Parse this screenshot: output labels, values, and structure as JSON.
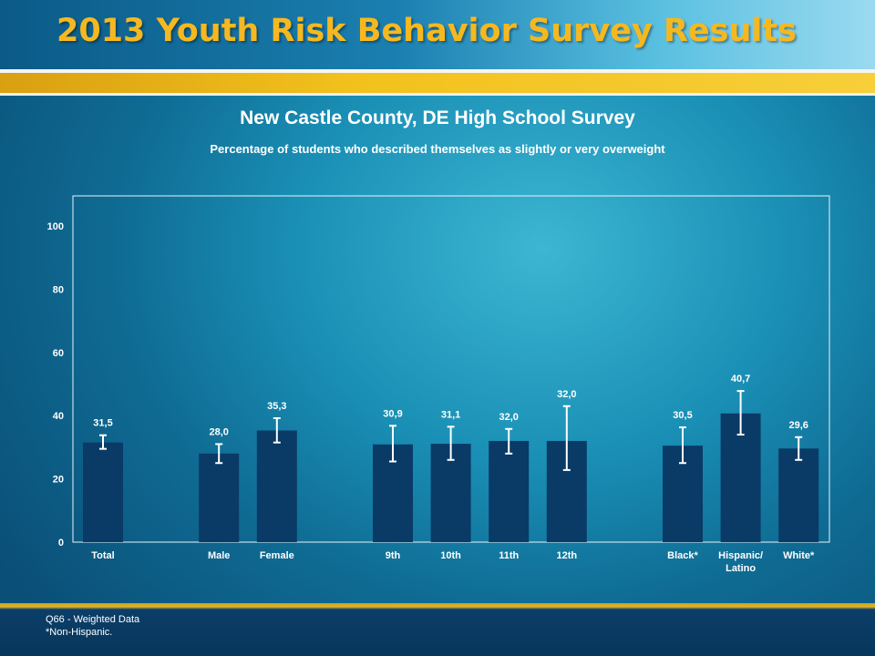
{
  "banner": {
    "title": "2013 Youth Risk Behavior Survey Results"
  },
  "chart_data": {
    "type": "bar",
    "title": "New Castle County, DE High School Survey",
    "subtitle": "Percentage of students who described themselves as slightly or very overweight",
    "xlabel": "",
    "ylabel": "",
    "ylim": [
      0,
      100
    ],
    "yticks": [
      0,
      20,
      40,
      60,
      80,
      100
    ],
    "grid": false,
    "categories": [
      "Total",
      "Male",
      "Female",
      "9th",
      "10th",
      "11th",
      "12th",
      "Black*",
      "Hispanic/\nLatino",
      "White*"
    ],
    "slots": [
      0,
      2,
      3,
      5,
      6,
      7,
      8,
      10,
      11,
      12
    ],
    "values": [
      31.5,
      28.0,
      35.3,
      30.9,
      31.1,
      32.0,
      32.0,
      30.5,
      40.7,
      29.6
    ],
    "value_labels": [
      "31,5",
      "28,0",
      "35,3",
      "30,9",
      "31,1",
      "32,0",
      "32,0",
      "30,5",
      "40,7",
      "29,6"
    ],
    "ci_low": [
      29.5,
      25.0,
      31.5,
      25.5,
      26.0,
      28.0,
      22.8,
      25.0,
      34.0,
      26.0
    ],
    "ci_high": [
      33.8,
      31.0,
      39.2,
      36.8,
      36.5,
      35.8,
      43.0,
      36.3,
      47.8,
      33.2
    ],
    "bar_color": "#0a3a66",
    "errorbar_color": "#ffffff"
  },
  "footer": {
    "note1": "Q66 - Weighted Data",
    "note2": "*Non-Hispanic."
  }
}
